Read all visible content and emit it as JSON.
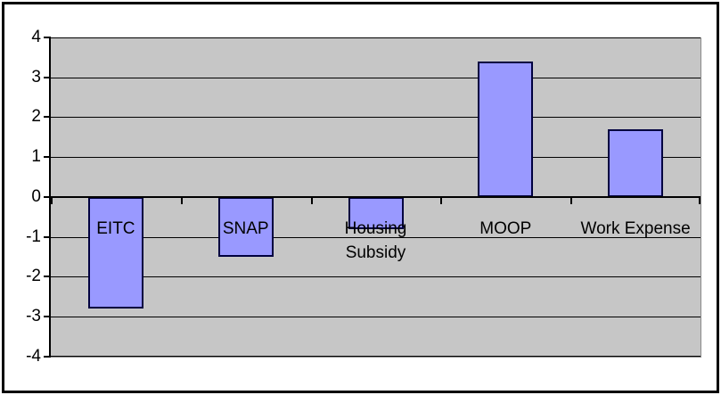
{
  "chart_data": {
    "type": "bar",
    "title": "",
    "xlabel": "",
    "ylabel": "",
    "categories": [
      "EITC",
      "SNAP",
      "Housing Subsidy",
      "MOOP",
      "Work Expense"
    ],
    "category_label_lines": [
      [
        "EITC"
      ],
      [
        "SNAP"
      ],
      [
        "Housing",
        "Subsidy"
      ],
      [
        "MOOP"
      ],
      [
        "Work Expense"
      ]
    ],
    "values": [
      -2.8,
      -1.5,
      -0.8,
      3.4,
      1.7
    ],
    "ylim": [
      -4,
      4
    ],
    "ytick_step": 1,
    "ytick_labels": [
      "4",
      "3",
      "2",
      "1",
      "0",
      "-1",
      "-2",
      "-3",
      "-4"
    ],
    "grid": true,
    "legend": false,
    "colors": {
      "bar_fill": "#9999FF",
      "bar_border": "#000040",
      "plot_background": "#C6C6C6",
      "gridline": "#000000",
      "axis": "#000000",
      "text": "#000000",
      "page_background": "#FFFFFF",
      "frame_border": "#000000"
    }
  }
}
